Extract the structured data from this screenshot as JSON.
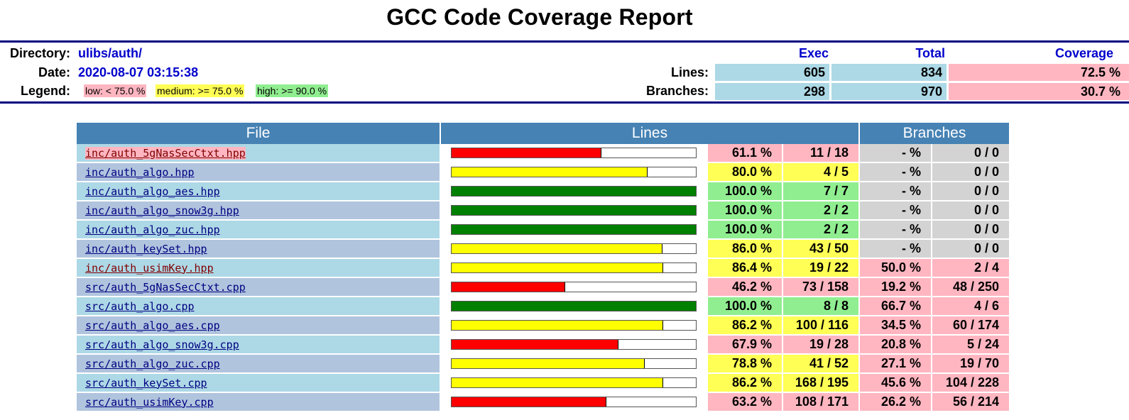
{
  "title": "GCC Code Coverage Report",
  "header": {
    "directory_label": "Directory:",
    "directory": "ulibs/auth/",
    "date_label": "Date:",
    "date": "2020-08-07 03:15:38",
    "legend_label": "Legend:",
    "legend": {
      "low": "low: < 75.0 %",
      "medium": "medium: >= 75.0 %",
      "high": "high: >= 90.0 %"
    }
  },
  "summary": {
    "col_exec": "Exec",
    "col_total": "Total",
    "col_coverage": "Coverage",
    "lines_label": "Lines:",
    "lines_exec": "605",
    "lines_total": "834",
    "lines_cov": "72.5 %",
    "branches_label": "Branches:",
    "branches_exec": "298",
    "branches_total": "970",
    "branches_cov": "30.7 %"
  },
  "colors": {
    "low": "#ffb6c1",
    "medium": "#ffff55",
    "high": "#90ee90",
    "none": "#d3d3d3",
    "bar_low": "#ff0000",
    "bar_med": "#ffff00",
    "bar_high": "#008000",
    "header": "#4682b4"
  },
  "table": {
    "headers": {
      "file": "File",
      "lines": "Lines",
      "branches": "Branches"
    },
    "rows": [
      {
        "file": "inc/auth_5gNasSecCtxt.hpp",
        "line_pct": 61.1,
        "line_pct_text": "61.1 %",
        "line_cnt": "11 / 18",
        "line_level": "low",
        "br_pct_text": "- %",
        "br_cnt": "0 / 0",
        "br_level": "none"
      },
      {
        "file": "inc/auth_algo.hpp",
        "line_pct": 80.0,
        "line_pct_text": "80.0 %",
        "line_cnt": "4 / 5",
        "line_level": "med",
        "br_pct_text": "- %",
        "br_cnt": "0 / 0",
        "br_level": "none"
      },
      {
        "file": "inc/auth_algo_aes.hpp",
        "line_pct": 100.0,
        "line_pct_text": "100.0 %",
        "line_cnt": "7 / 7",
        "line_level": "high",
        "br_pct_text": "- %",
        "br_cnt": "0 / 0",
        "br_level": "none"
      },
      {
        "file": "inc/auth_algo_snow3g.hpp",
        "line_pct": 100.0,
        "line_pct_text": "100.0 %",
        "line_cnt": "2 / 2",
        "line_level": "high",
        "br_pct_text": "- %",
        "br_cnt": "0 / 0",
        "br_level": "none"
      },
      {
        "file": "inc/auth_algo_zuc.hpp",
        "line_pct": 100.0,
        "line_pct_text": "100.0 %",
        "line_cnt": "2 / 2",
        "line_level": "high",
        "br_pct_text": "- %",
        "br_cnt": "0 / 0",
        "br_level": "none"
      },
      {
        "file": "inc/auth_keySet.hpp",
        "line_pct": 86.0,
        "line_pct_text": "86.0 %",
        "line_cnt": "43 / 50",
        "line_level": "med",
        "br_pct_text": "- %",
        "br_cnt": "0 / 0",
        "br_level": "none"
      },
      {
        "file": "inc/auth_usimKey.hpp",
        "line_pct": 86.4,
        "line_pct_text": "86.4 %",
        "line_cnt": "19 / 22",
        "line_level": "med",
        "br_pct_text": "50.0 %",
        "br_cnt": "2 / 4",
        "br_level": "low"
      },
      {
        "file": "src/auth_5gNasSecCtxt.cpp",
        "line_pct": 46.2,
        "line_pct_text": "46.2 %",
        "line_cnt": "73 / 158",
        "line_level": "low",
        "br_pct_text": "19.2 %",
        "br_cnt": "48 / 250",
        "br_level": "low"
      },
      {
        "file": "src/auth_algo.cpp",
        "line_pct": 100.0,
        "line_pct_text": "100.0 %",
        "line_cnt": "8 / 8",
        "line_level": "high",
        "br_pct_text": "66.7 %",
        "br_cnt": "4 / 6",
        "br_level": "low"
      },
      {
        "file": "src/auth_algo_aes.cpp",
        "line_pct": 86.2,
        "line_pct_text": "86.2 %",
        "line_cnt": "100 / 116",
        "line_level": "med",
        "br_pct_text": "34.5 %",
        "br_cnt": "60 / 174",
        "br_level": "low"
      },
      {
        "file": "src/auth_algo_snow3g.cpp",
        "line_pct": 67.9,
        "line_pct_text": "67.9 %",
        "line_cnt": "19 / 28",
        "line_level": "low",
        "br_pct_text": "20.8 %",
        "br_cnt": "5 / 24",
        "br_level": "low"
      },
      {
        "file": "src/auth_algo_zuc.cpp",
        "line_pct": 78.8,
        "line_pct_text": "78.8 %",
        "line_cnt": "41 / 52",
        "line_level": "med",
        "br_pct_text": "27.1 %",
        "br_cnt": "19 / 70",
        "br_level": "low"
      },
      {
        "file": "src/auth_keySet.cpp",
        "line_pct": 86.2,
        "line_pct_text": "86.2 %",
        "line_cnt": "168 / 195",
        "line_level": "med",
        "br_pct_text": "45.6 %",
        "br_cnt": "104 / 228",
        "br_level": "low"
      },
      {
        "file": "src/auth_usimKey.cpp",
        "line_pct": 63.2,
        "line_pct_text": "63.2 %",
        "line_cnt": "108 / 171",
        "line_level": "low",
        "br_pct_text": "26.2 %",
        "br_cnt": "56 / 214",
        "br_level": "low"
      }
    ]
  }
}
